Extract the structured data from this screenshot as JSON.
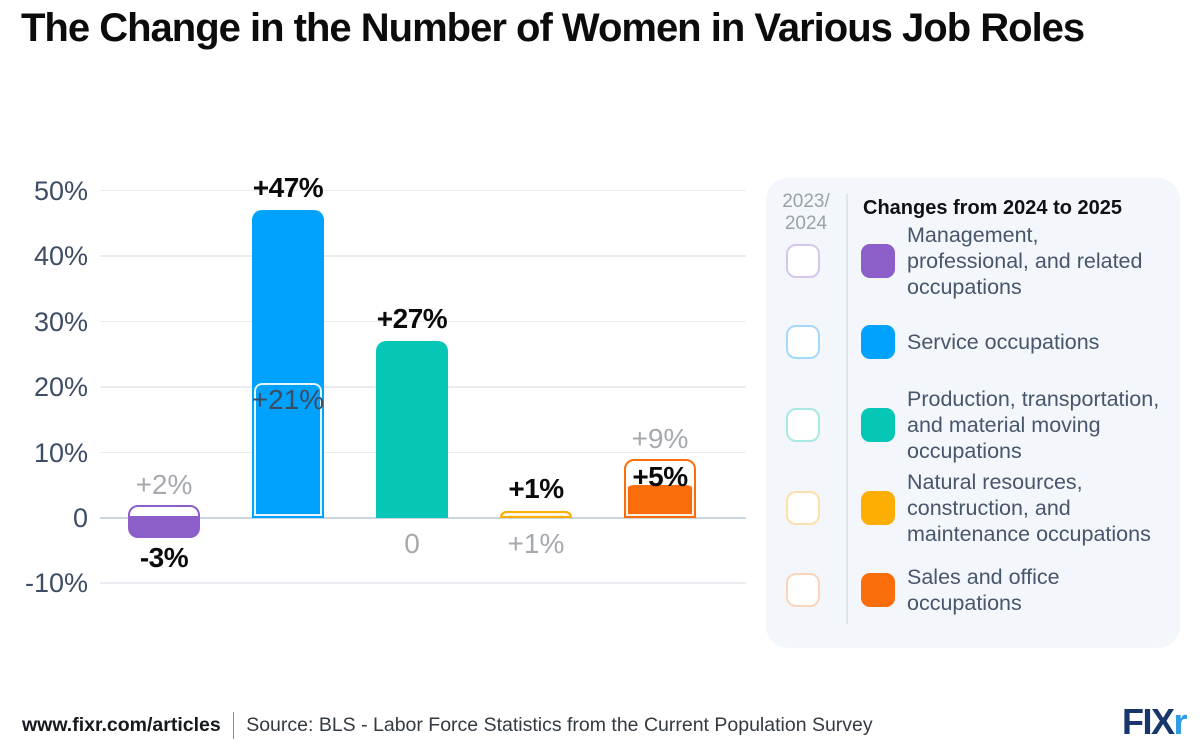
{
  "title": "The Change in the Number of Women in Various Job Roles",
  "legend": {
    "left_header_line1": "2023/",
    "left_header_line2": "2024",
    "right_header": "Changes from 2024 to 2025"
  },
  "footer": {
    "site": "www.fixr.com/articles",
    "source": "Source: BLS - Labor Force Statistics from the Current Population Survey",
    "logo_fix": "FIX",
    "logo_r": "r",
    "logo_fix_color": "#17366b",
    "logo_r_color": "#2e9ce7"
  },
  "chart_data": {
    "type": "bar",
    "title": "The Change in the Number of Women in Various Job Roles",
    "xlabel": "",
    "ylabel": "",
    "ylim": [
      -10,
      50
    ],
    "grid": true,
    "legend_position": "right",
    "yticks": [
      {
        "value": 50,
        "label": "50%"
      },
      {
        "value": 40,
        "label": "40%"
      },
      {
        "value": 30,
        "label": "30%"
      },
      {
        "value": 20,
        "label": "20%"
      },
      {
        "value": 10,
        "label": "10%"
      },
      {
        "value": 0,
        "label": "0"
      },
      {
        "value": -10,
        "label": "-10%"
      }
    ],
    "categories": [
      "Management, professional, and related occupations",
      "Service occupations",
      "Production, transportation, and material moving occupations",
      "Natural resources, construction, and maintenance occupations",
      "Sales and office occupations"
    ],
    "colors": [
      "#8b5ec9",
      "#00a2fe",
      "#06c6b6",
      "#fdae03",
      "#f96e0b"
    ],
    "legend_outline_colors": [
      "#d6c6ee",
      "#a3dafc",
      "#a9e9e3",
      "#fde1ab",
      "#fcd4b9"
    ],
    "series": [
      {
        "name": "2023/2024",
        "style": "outline",
        "values": [
          2,
          21,
          0,
          1,
          9
        ],
        "labels": [
          "+2%",
          "+21%",
          "0",
          "+1%",
          "+9%"
        ],
        "label_placements": [
          "above",
          "inside-bar",
          "below-axis",
          "below-axis",
          "above"
        ]
      },
      {
        "name": "Changes from 2024 to 2025",
        "style": "filled",
        "values": [
          -3,
          47,
          27,
          1,
          5
        ],
        "labels": [
          "-3%",
          "+47%",
          "+27%",
          "+1%",
          "+5%"
        ],
        "label_placements": [
          "below",
          "above",
          "above",
          "above",
          "inside-outline"
        ]
      }
    ]
  }
}
